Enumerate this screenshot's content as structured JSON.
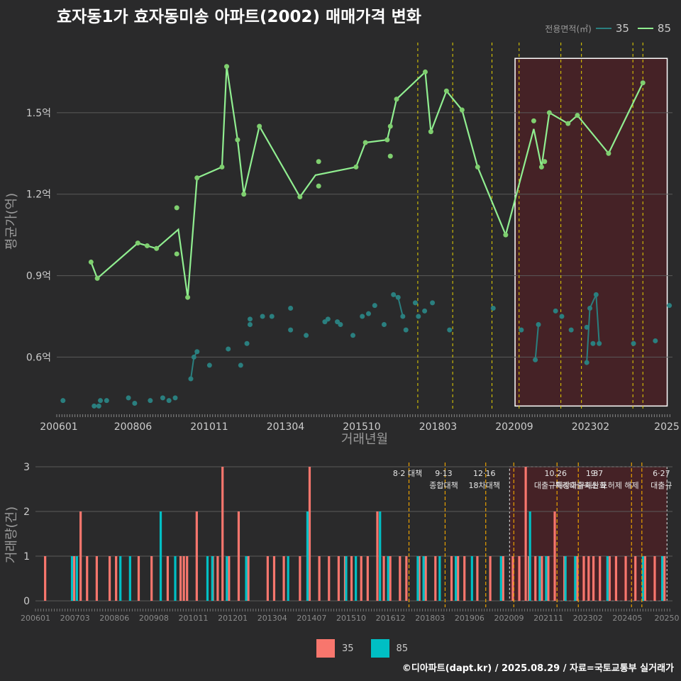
{
  "title": "효자동1가 효자동미송 아파트(2002) 매매가격 변화",
  "footer": "©디아파트(dapt.kr) / 2025.08.29 / 자료=국토교통부 실거래가",
  "legend": {
    "title": "전용면적(㎡)",
    "items": [
      {
        "name": "35",
        "color": "#2a7f7f"
      },
      {
        "name": "85",
        "color": "#90ee90"
      }
    ]
  },
  "bar_legend": [
    {
      "name": "35",
      "color": "#f8766d"
    },
    {
      "name": "85",
      "color": "#00bfc4"
    }
  ],
  "chart_data": [
    {
      "type": "line",
      "title": "효자동1가 효자동미송 아파트(2002) 매매가격 변화",
      "xlabel": "거래년월",
      "ylabel": "평균가(억)",
      "x_ticks": [
        "200601",
        "200806",
        "201011",
        "201304",
        "201510",
        "201803",
        "202009",
        "202302",
        "2025"
      ],
      "y_ticks": [
        "0.6억",
        "0.9억",
        "1.2억",
        "1.5억"
      ],
      "y_tick_values": [
        0.6,
        0.9,
        1.2,
        1.5
      ],
      "xlim": [
        2006.0,
        2025.75
      ],
      "ylim": [
        0.4,
        1.8
      ],
      "policy_lines": [
        2017.58,
        2018.7,
        2019.96,
        2020.83,
        2022.17,
        2022.83,
        2024.48,
        2024.8
      ],
      "highlight_region": [
        2020.7,
        2025.58,
        0.42,
        1.7
      ],
      "series": [
        {
          "name": "85",
          "line": [
            [
              2007.1,
              0.95
            ],
            [
              2007.3,
              0.89
            ],
            [
              2008.6,
              1.02
            ],
            [
              2008.9,
              1.01
            ],
            [
              2009.2,
              1.0
            ],
            [
              2009.9,
              1.07
            ],
            [
              2010.2,
              0.82
            ],
            [
              2010.5,
              1.26
            ],
            [
              2011.3,
              1.3
            ],
            [
              2011.45,
              1.67
            ],
            [
              2011.8,
              1.4
            ],
            [
              2012.0,
              1.2
            ],
            [
              2012.5,
              1.45
            ],
            [
              2013.8,
              1.19
            ],
            [
              2014.3,
              1.27
            ],
            [
              2015.6,
              1.3
            ],
            [
              2015.9,
              1.39
            ],
            [
              2016.6,
              1.4
            ],
            [
              2016.9,
              1.55
            ],
            [
              2017.82,
              1.65
            ],
            [
              2018.0,
              1.43
            ],
            [
              2018.5,
              1.58
            ],
            [
              2019.0,
              1.51
            ],
            [
              2019.5,
              1.3
            ],
            [
              2020.4,
              1.05
            ],
            [
              2021.3,
              1.44
            ],
            [
              2021.55,
              1.3
            ],
            [
              2021.8,
              1.5
            ],
            [
              2022.4,
              1.46
            ],
            [
              2022.7,
              1.49
            ],
            [
              2023.7,
              1.35
            ],
            [
              2024.8,
              1.61
            ]
          ],
          "points": [
            [
              2007.1,
              0.95
            ],
            [
              2007.3,
              0.89
            ],
            [
              2008.6,
              1.02
            ],
            [
              2008.9,
              1.01
            ],
            [
              2009.2,
              1.0
            ],
            [
              2009.85,
              1.15
            ],
            [
              2009.85,
              0.98
            ],
            [
              2010.2,
              0.82
            ],
            [
              2010.5,
              1.26
            ],
            [
              2011.3,
              1.3
            ],
            [
              2011.45,
              1.67
            ],
            [
              2011.8,
              1.4
            ],
            [
              2012.0,
              1.2
            ],
            [
              2012.5,
              1.45
            ],
            [
              2013.8,
              1.19
            ],
            [
              2014.4,
              1.32
            ],
            [
              2014.4,
              1.23
            ],
            [
              2015.6,
              1.3
            ],
            [
              2015.9,
              1.39
            ],
            [
              2016.6,
              1.4
            ],
            [
              2016.7,
              1.45
            ],
            [
              2016.7,
              1.34
            ],
            [
              2016.9,
              1.55
            ],
            [
              2017.82,
              1.65
            ],
            [
              2018.0,
              1.43
            ],
            [
              2018.5,
              1.58
            ],
            [
              2019.0,
              1.51
            ],
            [
              2019.5,
              1.3
            ],
            [
              2020.4,
              1.05
            ],
            [
              2021.3,
              1.47
            ],
            [
              2021.55,
              1.3
            ],
            [
              2021.65,
              1.32
            ],
            [
              2021.8,
              1.5
            ],
            [
              2022.4,
              1.46
            ],
            [
              2022.7,
              1.49
            ],
            [
              2023.7,
              1.35
            ],
            [
              2024.8,
              1.61
            ]
          ]
        },
        {
          "name": "35",
          "line_segments": [
            [
              [
                2010.3,
                0.52
              ],
              [
                2010.4,
                0.6
              ],
              [
                2010.5,
                0.62
              ]
            ],
            [
              [
                2016.8,
                0.83
              ],
              [
                2016.95,
                0.82
              ],
              [
                2017.1,
                0.75
              ]
            ],
            [
              [
                2021.35,
                0.59
              ],
              [
                2021.45,
                0.72
              ]
            ],
            [
              [
                2023.0,
                0.58
              ],
              [
                2023.1,
                0.78
              ],
              [
                2023.3,
                0.83
              ],
              [
                2023.4,
                0.65
              ]
            ]
          ],
          "points": [
            [
              2006.2,
              0.44
            ],
            [
              2007.2,
              0.42
            ],
            [
              2007.35,
              0.42
            ],
            [
              2007.4,
              0.44
            ],
            [
              2007.6,
              0.44
            ],
            [
              2008.3,
              0.45
            ],
            [
              2008.5,
              0.43
            ],
            [
              2009.0,
              0.44
            ],
            [
              2009.4,
              0.45
            ],
            [
              2009.6,
              0.44
            ],
            [
              2009.8,
              0.45
            ],
            [
              2010.3,
              0.52
            ],
            [
              2010.4,
              0.6
            ],
            [
              2010.5,
              0.62
            ],
            [
              2010.9,
              0.57
            ],
            [
              2011.5,
              0.63
            ],
            [
              2011.9,
              0.57
            ],
            [
              2012.1,
              0.65
            ],
            [
              2012.2,
              0.72
            ],
            [
              2012.2,
              0.74
            ],
            [
              2012.6,
              0.75
            ],
            [
              2012.9,
              0.75
            ],
            [
              2013.5,
              0.78
            ],
            [
              2013.5,
              0.7
            ],
            [
              2014.0,
              0.68
            ],
            [
              2014.6,
              0.73
            ],
            [
              2014.7,
              0.74
            ],
            [
              2015.0,
              0.73
            ],
            [
              2015.1,
              0.72
            ],
            [
              2015.5,
              0.68
            ],
            [
              2015.8,
              0.75
            ],
            [
              2016.0,
              0.76
            ],
            [
              2016.2,
              0.79
            ],
            [
              2016.5,
              0.72
            ],
            [
              2017.2,
              0.7
            ],
            [
              2016.8,
              0.83
            ],
            [
              2016.95,
              0.82
            ],
            [
              2017.1,
              0.75
            ],
            [
              2017.5,
              0.8
            ],
            [
              2017.6,
              0.75
            ],
            [
              2017.8,
              0.77
            ],
            [
              2018.05,
              0.8
            ],
            [
              2018.6,
              0.7
            ],
            [
              2020.0,
              0.78
            ],
            [
              2020.9,
              0.7
            ],
            [
              2021.35,
              0.59
            ],
            [
              2021.45,
              0.72
            ],
            [
              2022.0,
              0.77
            ],
            [
              2022.2,
              0.75
            ],
            [
              2022.5,
              0.7
            ],
            [
              2023.0,
              0.71
            ],
            [
              2023.2,
              0.65
            ],
            [
              2023.0,
              0.58
            ],
            [
              2023.1,
              0.78
            ],
            [
              2023.3,
              0.83
            ],
            [
              2023.4,
              0.65
            ],
            [
              2024.5,
              0.65
            ],
            [
              2025.2,
              0.66
            ],
            [
              2025.65,
              0.79
            ]
          ]
        }
      ]
    },
    {
      "type": "bar",
      "ylabel": "거래량(건)",
      "x_ticks": [
        "200601",
        "200703",
        "200806",
        "200908",
        "201011",
        "201201",
        "201304",
        "201407",
        "201510",
        "201612",
        "201803",
        "201906",
        "202009",
        "202111",
        "202302",
        "202405",
        "20250"
      ],
      "y_ticks": [
        "0",
        "1",
        "2",
        "3"
      ],
      "ylim": [
        0,
        3
      ],
      "xlim": [
        2006.0,
        2025.75
      ],
      "policy_lines": [
        2017.58,
        2018.7,
        2019.96,
        2020.83,
        2022.17,
        2022.83,
        2024.48,
        2024.8
      ],
      "highlight_region": [
        2020.7,
        2025.58
      ],
      "annotations": [
        {
          "x": 2017.58,
          "lines": [
            "8·2 대책"
          ]
        },
        {
          "x": 2018.7,
          "lines": [
            "9·13",
            "종합대책"
          ]
        },
        {
          "x": 2019.96,
          "lines": [
            "12·16",
            "18차대책"
          ]
        },
        {
          "x": 2022.17,
          "lines": [
            "10.26",
            "대출규제강화"
          ]
        },
        {
          "x": 2023.3,
          "lines": [
            "1.3",
            "규제완화"
          ]
        },
        {
          "x": 2023.45,
          "lines": [
            "9·7",
            "특례대출축소 토허제 해제"
          ]
        },
        {
          "x": 2025.45,
          "lines": [
            "6·27",
            "대출규"
          ]
        }
      ],
      "series": [
        {
          "name": "35",
          "values": [
            [
              2006.3,
              1
            ],
            [
              2007.2,
              1
            ],
            [
              2007.4,
              2
            ],
            [
              2007.6,
              1
            ],
            [
              2007.9,
              1
            ],
            [
              2008.3,
              1
            ],
            [
              2008.5,
              1
            ],
            [
              2009.2,
              1
            ],
            [
              2009.6,
              1
            ],
            [
              2010.1,
              1
            ],
            [
              2010.5,
              1
            ],
            [
              2010.6,
              1
            ],
            [
              2010.7,
              1
            ],
            [
              2011.0,
              2
            ],
            [
              2011.5,
              1
            ],
            [
              2011.65,
              1
            ],
            [
              2011.8,
              3
            ],
            [
              2012.0,
              1
            ],
            [
              2012.3,
              2
            ],
            [
              2012.6,
              1
            ],
            [
              2013.2,
              1
            ],
            [
              2013.4,
              1
            ],
            [
              2013.7,
              1
            ],
            [
              2014.2,
              1
            ],
            [
              2014.5,
              3
            ],
            [
              2014.8,
              1
            ],
            [
              2015.1,
              1
            ],
            [
              2015.4,
              1
            ],
            [
              2015.6,
              1
            ],
            [
              2015.8,
              1
            ],
            [
              2016.1,
              1
            ],
            [
              2016.3,
              1
            ],
            [
              2016.6,
              2
            ],
            [
              2016.8,
              1
            ],
            [
              2017.0,
              1
            ],
            [
              2017.3,
              1
            ],
            [
              2017.5,
              1
            ],
            [
              2017.9,
              1
            ],
            [
              2018.1,
              1
            ],
            [
              2018.4,
              1
            ],
            [
              2018.9,
              1
            ],
            [
              2019.1,
              1
            ],
            [
              2019.3,
              1
            ],
            [
              2019.7,
              1
            ],
            [
              2020.1,
              1
            ],
            [
              2020.5,
              1
            ],
            [
              2020.8,
              1
            ],
            [
              2021.0,
              1
            ],
            [
              2021.2,
              3
            ],
            [
              2021.3,
              1
            ],
            [
              2021.5,
              1
            ],
            [
              2021.7,
              1
            ],
            [
              2021.9,
              1
            ],
            [
              2022.1,
              2
            ],
            [
              2022.4,
              1
            ],
            [
              2022.8,
              1
            ],
            [
              2023.0,
              1
            ],
            [
              2023.15,
              1
            ],
            [
              2023.3,
              1
            ],
            [
              2023.5,
              1
            ],
            [
              2023.8,
              1
            ],
            [
              2024.0,
              1
            ],
            [
              2024.3,
              1
            ],
            [
              2024.6,
              1
            ],
            [
              2024.9,
              1
            ],
            [
              2025.2,
              1
            ],
            [
              2025.5,
              1
            ]
          ]
        },
        {
          "name": "85",
          "values": [
            [
              2007.1,
              1
            ],
            [
              2007.25,
              1
            ],
            [
              2008.6,
              1
            ],
            [
              2008.9,
              1
            ],
            [
              2009.85,
              2
            ],
            [
              2010.3,
              1
            ],
            [
              2011.3,
              1
            ],
            [
              2011.45,
              1
            ],
            [
              2011.9,
              1
            ],
            [
              2012.5,
              1
            ],
            [
              2013.8,
              1
            ],
            [
              2014.4,
              2
            ],
            [
              2015.6,
              1
            ],
            [
              2015.9,
              1
            ],
            [
              2016.65,
              2
            ],
            [
              2016.9,
              1
            ],
            [
              2017.82,
              1
            ],
            [
              2018.0,
              1
            ],
            [
              2018.5,
              1
            ],
            [
              2019.0,
              1
            ],
            [
              2019.5,
              1
            ],
            [
              2020.4,
              1
            ],
            [
              2021.3,
              2
            ],
            [
              2021.6,
              1
            ],
            [
              2021.8,
              1
            ],
            [
              2022.4,
              1
            ],
            [
              2022.7,
              1
            ],
            [
              2023.7,
              1
            ],
            [
              2024.8,
              1
            ],
            [
              2025.4,
              1
            ]
          ]
        }
      ]
    }
  ]
}
